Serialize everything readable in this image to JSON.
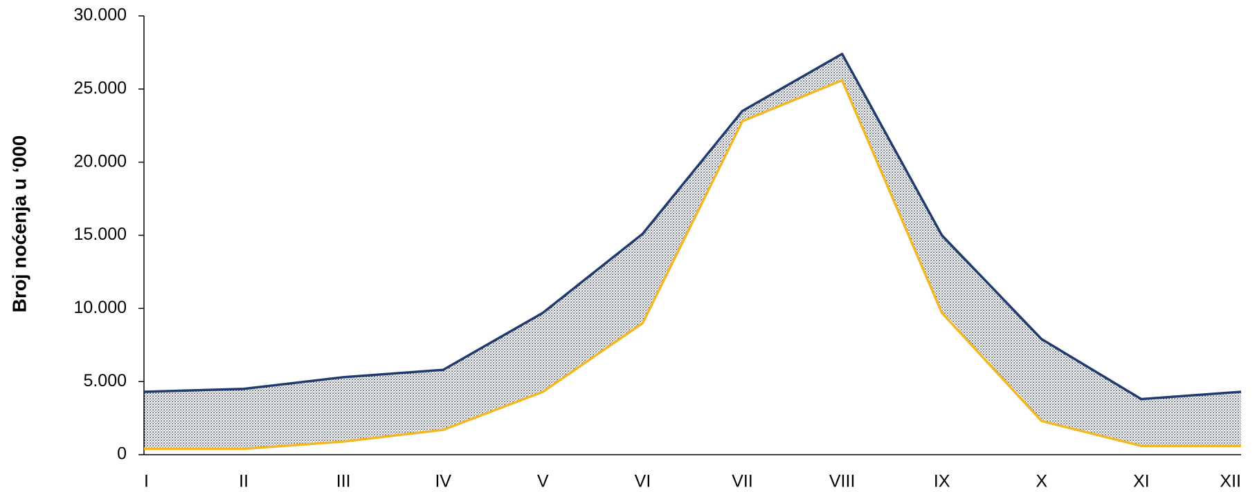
{
  "chart_data": {
    "type": "line",
    "y_label": "Broj noćenja u ‘000",
    "categories": [
      "I",
      "II",
      "III",
      "IV",
      "V",
      "VI",
      "VII",
      "VIII",
      "IX",
      "X",
      "XI",
      "XII"
    ],
    "series": [
      {
        "color": "#1f3a6e",
        "values": [
          4300,
          4500,
          5300,
          5800,
          9700,
          15100,
          23500,
          27400,
          15000,
          7900,
          3800,
          4300
        ]
      },
      {
        "color": "#f5b623",
        "values": [
          400,
          400,
          900,
          1700,
          4300,
          9000,
          22800,
          25600,
          9700,
          2300,
          600,
          600
        ]
      }
    ],
    "fill_between": true,
    "ylim": [
      0,
      30000
    ],
    "yticks": [
      0,
      {
        "value": 5000,
        "label": "5.000"
      },
      {
        "value": 10000,
        "label": "10.000"
      },
      {
        "value": 15000,
        "label": "15.000"
      },
      {
        "value": 20000,
        "label": "20.000"
      },
      {
        "value": 25000,
        "label": "25.000"
      },
      {
        "value": 30000,
        "label": "30.000"
      }
    ],
    "grid": false
  }
}
